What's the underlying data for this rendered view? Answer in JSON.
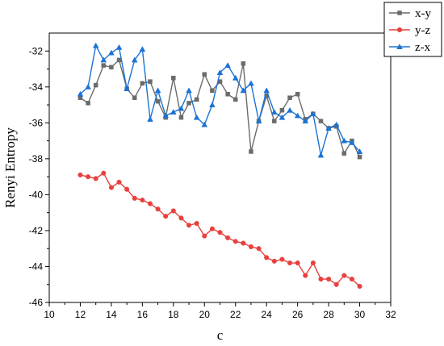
{
  "chart_data": {
    "type": "line",
    "xlabel": "c",
    "ylabel": "Renyi Entropy",
    "xlim": [
      10,
      32
    ],
    "ylim": [
      -46,
      -31
    ],
    "xticks": [
      10,
      12,
      14,
      16,
      18,
      20,
      22,
      24,
      26,
      28,
      30,
      32
    ],
    "yticks": [
      -46,
      -44,
      -42,
      -40,
      -38,
      -36,
      -34,
      -32
    ],
    "legend_position": "top-right",
    "grid": false,
    "x": [
      12,
      12.5,
      13,
      13.5,
      14,
      14.5,
      15,
      15.5,
      16,
      16.5,
      17,
      17.5,
      18,
      18.5,
      19,
      19.5,
      20,
      20.5,
      21,
      21.5,
      22,
      22.5,
      23,
      23.5,
      24,
      24.5,
      25,
      25.5,
      26,
      26.5,
      27,
      27.5,
      28,
      28.5,
      29,
      29.5,
      30
    ],
    "series": [
      {
        "name": "x-y",
        "color": "#6b6b6b",
        "marker": "square",
        "values": [
          -34.6,
          -34.9,
          -33.9,
          -32.8,
          -32.9,
          -32.5,
          -34.1,
          -34.6,
          -33.8,
          -33.7,
          -34.8,
          -35.7,
          -33.5,
          -35.7,
          -34.9,
          -34.7,
          -33.3,
          -34.2,
          -33.7,
          -34.4,
          -34.7,
          -32.7,
          -37.6,
          -35.9,
          -34.5,
          -35.9,
          -35.3,
          -34.6,
          -34.4,
          -35.8,
          -35.5,
          -35.9,
          -36.3,
          -36.2,
          -37.7,
          -37.0,
          -37.9
        ]
      },
      {
        "name": "y-z",
        "color": "#e8413e",
        "marker": "circle",
        "values": [
          -38.9,
          -39.0,
          -39.1,
          -38.8,
          -39.6,
          -39.3,
          -39.7,
          -40.2,
          -40.3,
          -40.5,
          -40.8,
          -41.2,
          -40.9,
          -41.3,
          -41.7,
          -41.6,
          -42.3,
          -41.9,
          -42.1,
          -42.4,
          -42.6,
          -42.7,
          -42.9,
          -43.0,
          -43.5,
          -43.7,
          -43.6,
          -43.8,
          -43.8,
          -44.5,
          -43.8,
          -44.7,
          -44.7,
          -45.0,
          -44.5,
          -44.7,
          -45.1
        ]
      },
      {
        "name": "z-x",
        "color": "#1a73d6",
        "marker": "triangle",
        "values": [
          -34.4,
          -34.0,
          -31.7,
          -32.5,
          -32.1,
          -31.8,
          -34.1,
          -32.5,
          -31.9,
          -35.8,
          -34.2,
          -35.6,
          -35.4,
          -35.2,
          -34.2,
          -35.7,
          -36.1,
          -35.0,
          -33.2,
          -32.8,
          -33.5,
          -34.2,
          -33.8,
          -35.9,
          -34.2,
          -35.4,
          -35.7,
          -35.3,
          -35.6,
          -35.9,
          -35.5,
          -37.8,
          -36.3,
          -36.1,
          -37.0,
          -37.1,
          -37.6
        ]
      }
    ]
  }
}
